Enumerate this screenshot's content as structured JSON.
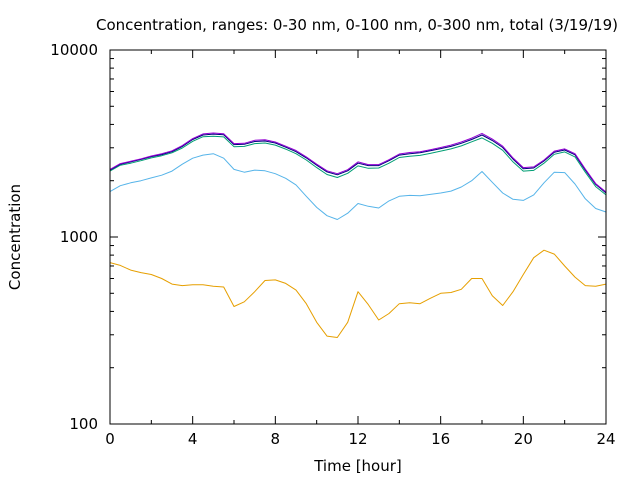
{
  "chart_data": {
    "type": "line",
    "title": "Concentration, ranges: 0-30 nm, 0-100 nm, 0-300 nm, total (3/19/19)",
    "xlabel": "Time [hour]",
    "ylabel": "Concentration",
    "xlim": [
      0,
      24
    ],
    "ylim": [
      100,
      10000
    ],
    "yscale": "log",
    "grid": false,
    "legend": "none",
    "xticks": [
      "0",
      "4",
      "8",
      "12",
      "16",
      "20",
      "24"
    ],
    "yticks": [
      "100",
      "1000",
      "10000"
    ],
    "x": [
      0,
      0.5,
      1,
      1.5,
      2,
      2.5,
      3,
      3.5,
      4,
      4.5,
      5,
      5.5,
      6,
      6.5,
      7,
      7.5,
      8,
      8.5,
      9,
      9.5,
      10,
      10.5,
      11,
      11.5,
      12,
      12.5,
      13,
      13.5,
      14,
      14.5,
      15,
      15.5,
      16,
      16.5,
      17,
      17.5,
      18,
      18.5,
      19,
      19.5,
      20,
      20.5,
      21,
      21.5,
      22,
      22.5,
      23,
      23.5,
      24
    ],
    "series": [
      {
        "color": "#e69f00",
        "values": [
          730,
          705,
          665,
          645,
          630,
          600,
          560,
          550,
          555,
          555,
          545,
          540,
          425,
          450,
          510,
          585,
          590,
          565,
          520,
          440,
          350,
          295,
          290,
          350,
          510,
          435,
          360,
          390,
          440,
          445,
          440,
          470,
          500,
          505,
          525,
          600,
          600,
          485,
          430,
          510,
          630,
          775,
          850,
          810,
          700,
          610,
          550,
          545,
          560
        ]
      },
      {
        "color": "#56b4e9",
        "values": [
          1750,
          1880,
          1950,
          2000,
          2070,
          2140,
          2250,
          2450,
          2640,
          2740,
          2790,
          2640,
          2300,
          2220,
          2280,
          2260,
          2180,
          2060,
          1900,
          1650,
          1440,
          1300,
          1240,
          1340,
          1510,
          1460,
          1430,
          1560,
          1650,
          1670,
          1660,
          1690,
          1720,
          1760,
          1850,
          2000,
          2240,
          1960,
          1720,
          1590,
          1570,
          1680,
          1950,
          2220,
          2210,
          1920,
          1600,
          1420,
          1360
        ]
      },
      {
        "color": "#009e73",
        "values": [
          2250,
          2420,
          2480,
          2560,
          2650,
          2720,
          2820,
          2990,
          3250,
          3440,
          3460,
          3430,
          3040,
          3050,
          3160,
          3180,
          3100,
          2950,
          2790,
          2580,
          2350,
          2160,
          2080,
          2190,
          2400,
          2330,
          2340,
          2480,
          2660,
          2700,
          2730,
          2800,
          2880,
          2960,
          3070,
          3230,
          3390,
          3170,
          2910,
          2520,
          2250,
          2270,
          2480,
          2770,
          2850,
          2680,
          2220,
          1860,
          1680
        ]
      },
      {
        "color": "#000080",
        "values": [
          2280,
          2450,
          2520,
          2600,
          2690,
          2760,
          2860,
          3050,
          3320,
          3510,
          3550,
          3520,
          3120,
          3130,
          3240,
          3260,
          3180,
          3020,
          2860,
          2650,
          2420,
          2230,
          2150,
          2260,
          2480,
          2410,
          2410,
          2560,
          2740,
          2790,
          2820,
          2890,
          2970,
          3050,
          3170,
          3320,
          3510,
          3280,
          3010,
          2610,
          2320,
          2340,
          2550,
          2840,
          2920,
          2750,
          2280,
          1910,
          1720
        ]
      },
      {
        "color": "#9400d3",
        "values": [
          2300,
          2470,
          2540,
          2620,
          2710,
          2790,
          2890,
          3080,
          3360,
          3560,
          3600,
          3570,
          3160,
          3170,
          3290,
          3310,
          3220,
          3060,
          2900,
          2680,
          2450,
          2260,
          2180,
          2290,
          2520,
          2440,
          2440,
          2590,
          2780,
          2830,
          2860,
          2930,
          3010,
          3100,
          3220,
          3380,
          3580,
          3340,
          3060,
          2650,
          2350,
          2370,
          2580,
          2880,
          2960,
          2790,
          2310,
          1930,
          1740
        ]
      }
    ]
  }
}
